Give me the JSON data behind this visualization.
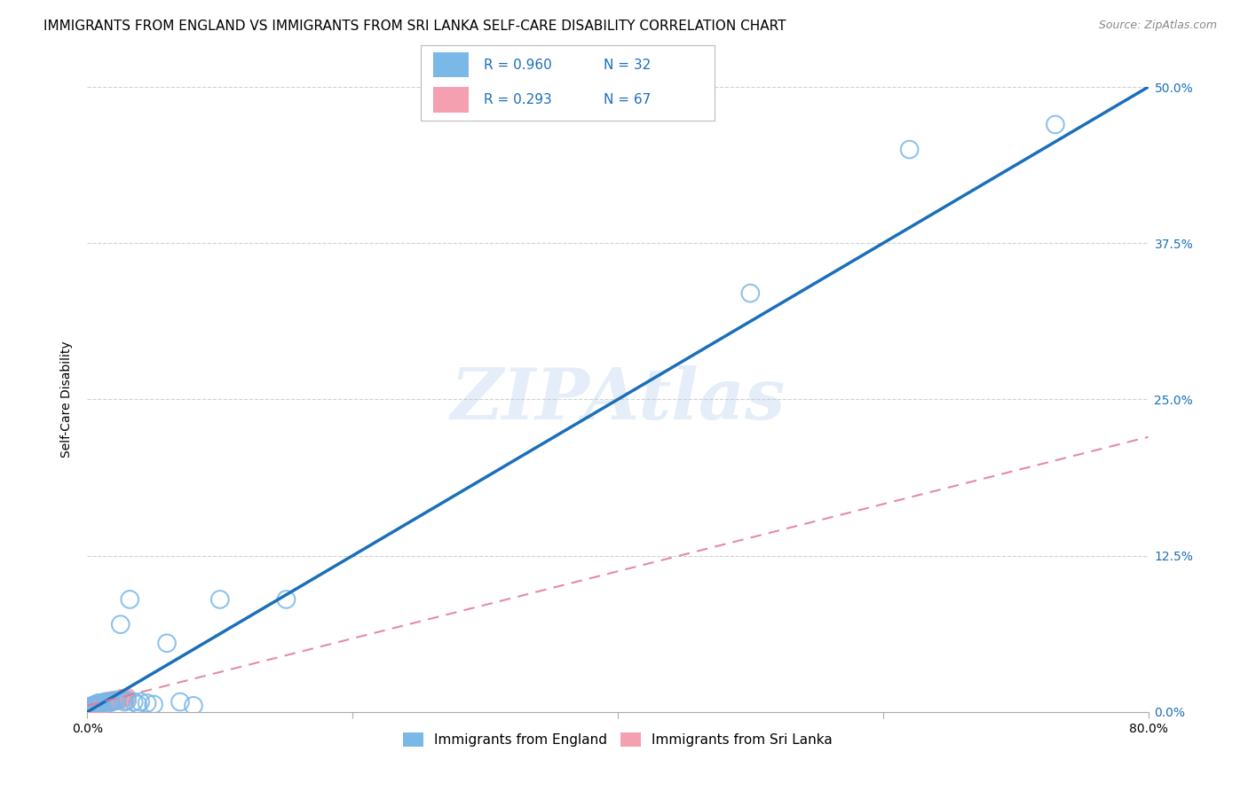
{
  "title": "IMMIGRANTS FROM ENGLAND VS IMMIGRANTS FROM SRI LANKA SELF-CARE DISABILITY CORRELATION CHART",
  "source": "Source: ZipAtlas.com",
  "ylabel": "Self-Care Disability",
  "xlim": [
    0.0,
    0.8
  ],
  "ylim": [
    0.0,
    0.5
  ],
  "xticks": [
    0.0,
    0.8
  ],
  "yticks": [
    0.0,
    0.125,
    0.25,
    0.375,
    0.5
  ],
  "ytick_labels": [
    "0.0%",
    "12.5%",
    "25.0%",
    "37.5%",
    "50.0%"
  ],
  "xtick_labels": [
    "0.0%",
    "80.0%"
  ],
  "england_R": 0.96,
  "england_N": 32,
  "srilanka_R": 0.293,
  "srilanka_N": 67,
  "england_color": "#7ab8e8",
  "srilanka_color": "#f4a0b0",
  "england_line_color": "#1a6fba",
  "srilanka_line_color": "#e07890",
  "watermark": "ZIPAtlas",
  "england_x": [
    0.003,
    0.004,
    0.005,
    0.006,
    0.007,
    0.008,
    0.009,
    0.01,
    0.011,
    0.013,
    0.015,
    0.017,
    0.018,
    0.02,
    0.022,
    0.025,
    0.028,
    0.03,
    0.032,
    0.035,
    0.038,
    0.04,
    0.045,
    0.05,
    0.06,
    0.07,
    0.08,
    0.1,
    0.15,
    0.5,
    0.62,
    0.73
  ],
  "england_y": [
    0.004,
    0.005,
    0.005,
    0.005,
    0.006,
    0.007,
    0.007,
    0.007,
    0.007,
    0.008,
    0.008,
    0.008,
    0.008,
    0.009,
    0.009,
    0.07,
    0.008,
    0.009,
    0.09,
    0.008,
    0.006,
    0.008,
    0.007,
    0.006,
    0.055,
    0.008,
    0.005,
    0.09,
    0.09,
    0.335,
    0.45,
    0.47
  ],
  "srilanka_x": [
    0.0,
    0.001,
    0.001,
    0.002,
    0.002,
    0.003,
    0.003,
    0.003,
    0.004,
    0.004,
    0.004,
    0.005,
    0.005,
    0.005,
    0.005,
    0.006,
    0.006,
    0.006,
    0.006,
    0.007,
    0.007,
    0.007,
    0.007,
    0.007,
    0.008,
    0.008,
    0.008,
    0.008,
    0.009,
    0.009,
    0.009,
    0.01,
    0.01,
    0.01,
    0.01,
    0.011,
    0.011,
    0.011,
    0.012,
    0.012,
    0.012,
    0.012,
    0.013,
    0.013,
    0.013,
    0.014,
    0.014,
    0.014,
    0.015,
    0.015,
    0.015,
    0.016,
    0.016,
    0.017,
    0.017,
    0.018,
    0.018,
    0.019,
    0.02,
    0.02,
    0.021,
    0.022,
    0.023,
    0.024,
    0.025,
    0.027,
    0.03
  ],
  "srilanka_y": [
    0.004,
    0.004,
    0.005,
    0.004,
    0.005,
    0.004,
    0.005,
    0.005,
    0.005,
    0.005,
    0.005,
    0.005,
    0.005,
    0.005,
    0.006,
    0.005,
    0.005,
    0.006,
    0.006,
    0.005,
    0.006,
    0.006,
    0.006,
    0.006,
    0.006,
    0.006,
    0.006,
    0.007,
    0.006,
    0.006,
    0.007,
    0.006,
    0.007,
    0.007,
    0.007,
    0.007,
    0.007,
    0.007,
    0.007,
    0.007,
    0.007,
    0.008,
    0.007,
    0.008,
    0.008,
    0.007,
    0.008,
    0.008,
    0.008,
    0.008,
    0.008,
    0.008,
    0.009,
    0.008,
    0.009,
    0.009,
    0.009,
    0.009,
    0.009,
    0.01,
    0.009,
    0.01,
    0.01,
    0.01,
    0.011,
    0.011,
    0.012
  ],
  "england_line_x": [
    0.0,
    0.8
  ],
  "england_line_y": [
    0.0,
    0.5
  ],
  "srilanka_line_x": [
    0.0,
    0.8
  ],
  "srilanka_line_y": [
    0.005,
    0.22
  ],
  "legend_label_england": "Immigrants from England",
  "legend_label_srilanka": "Immigrants from Sri Lanka",
  "title_fontsize": 11,
  "axis_label_fontsize": 10,
  "tick_fontsize": 10
}
